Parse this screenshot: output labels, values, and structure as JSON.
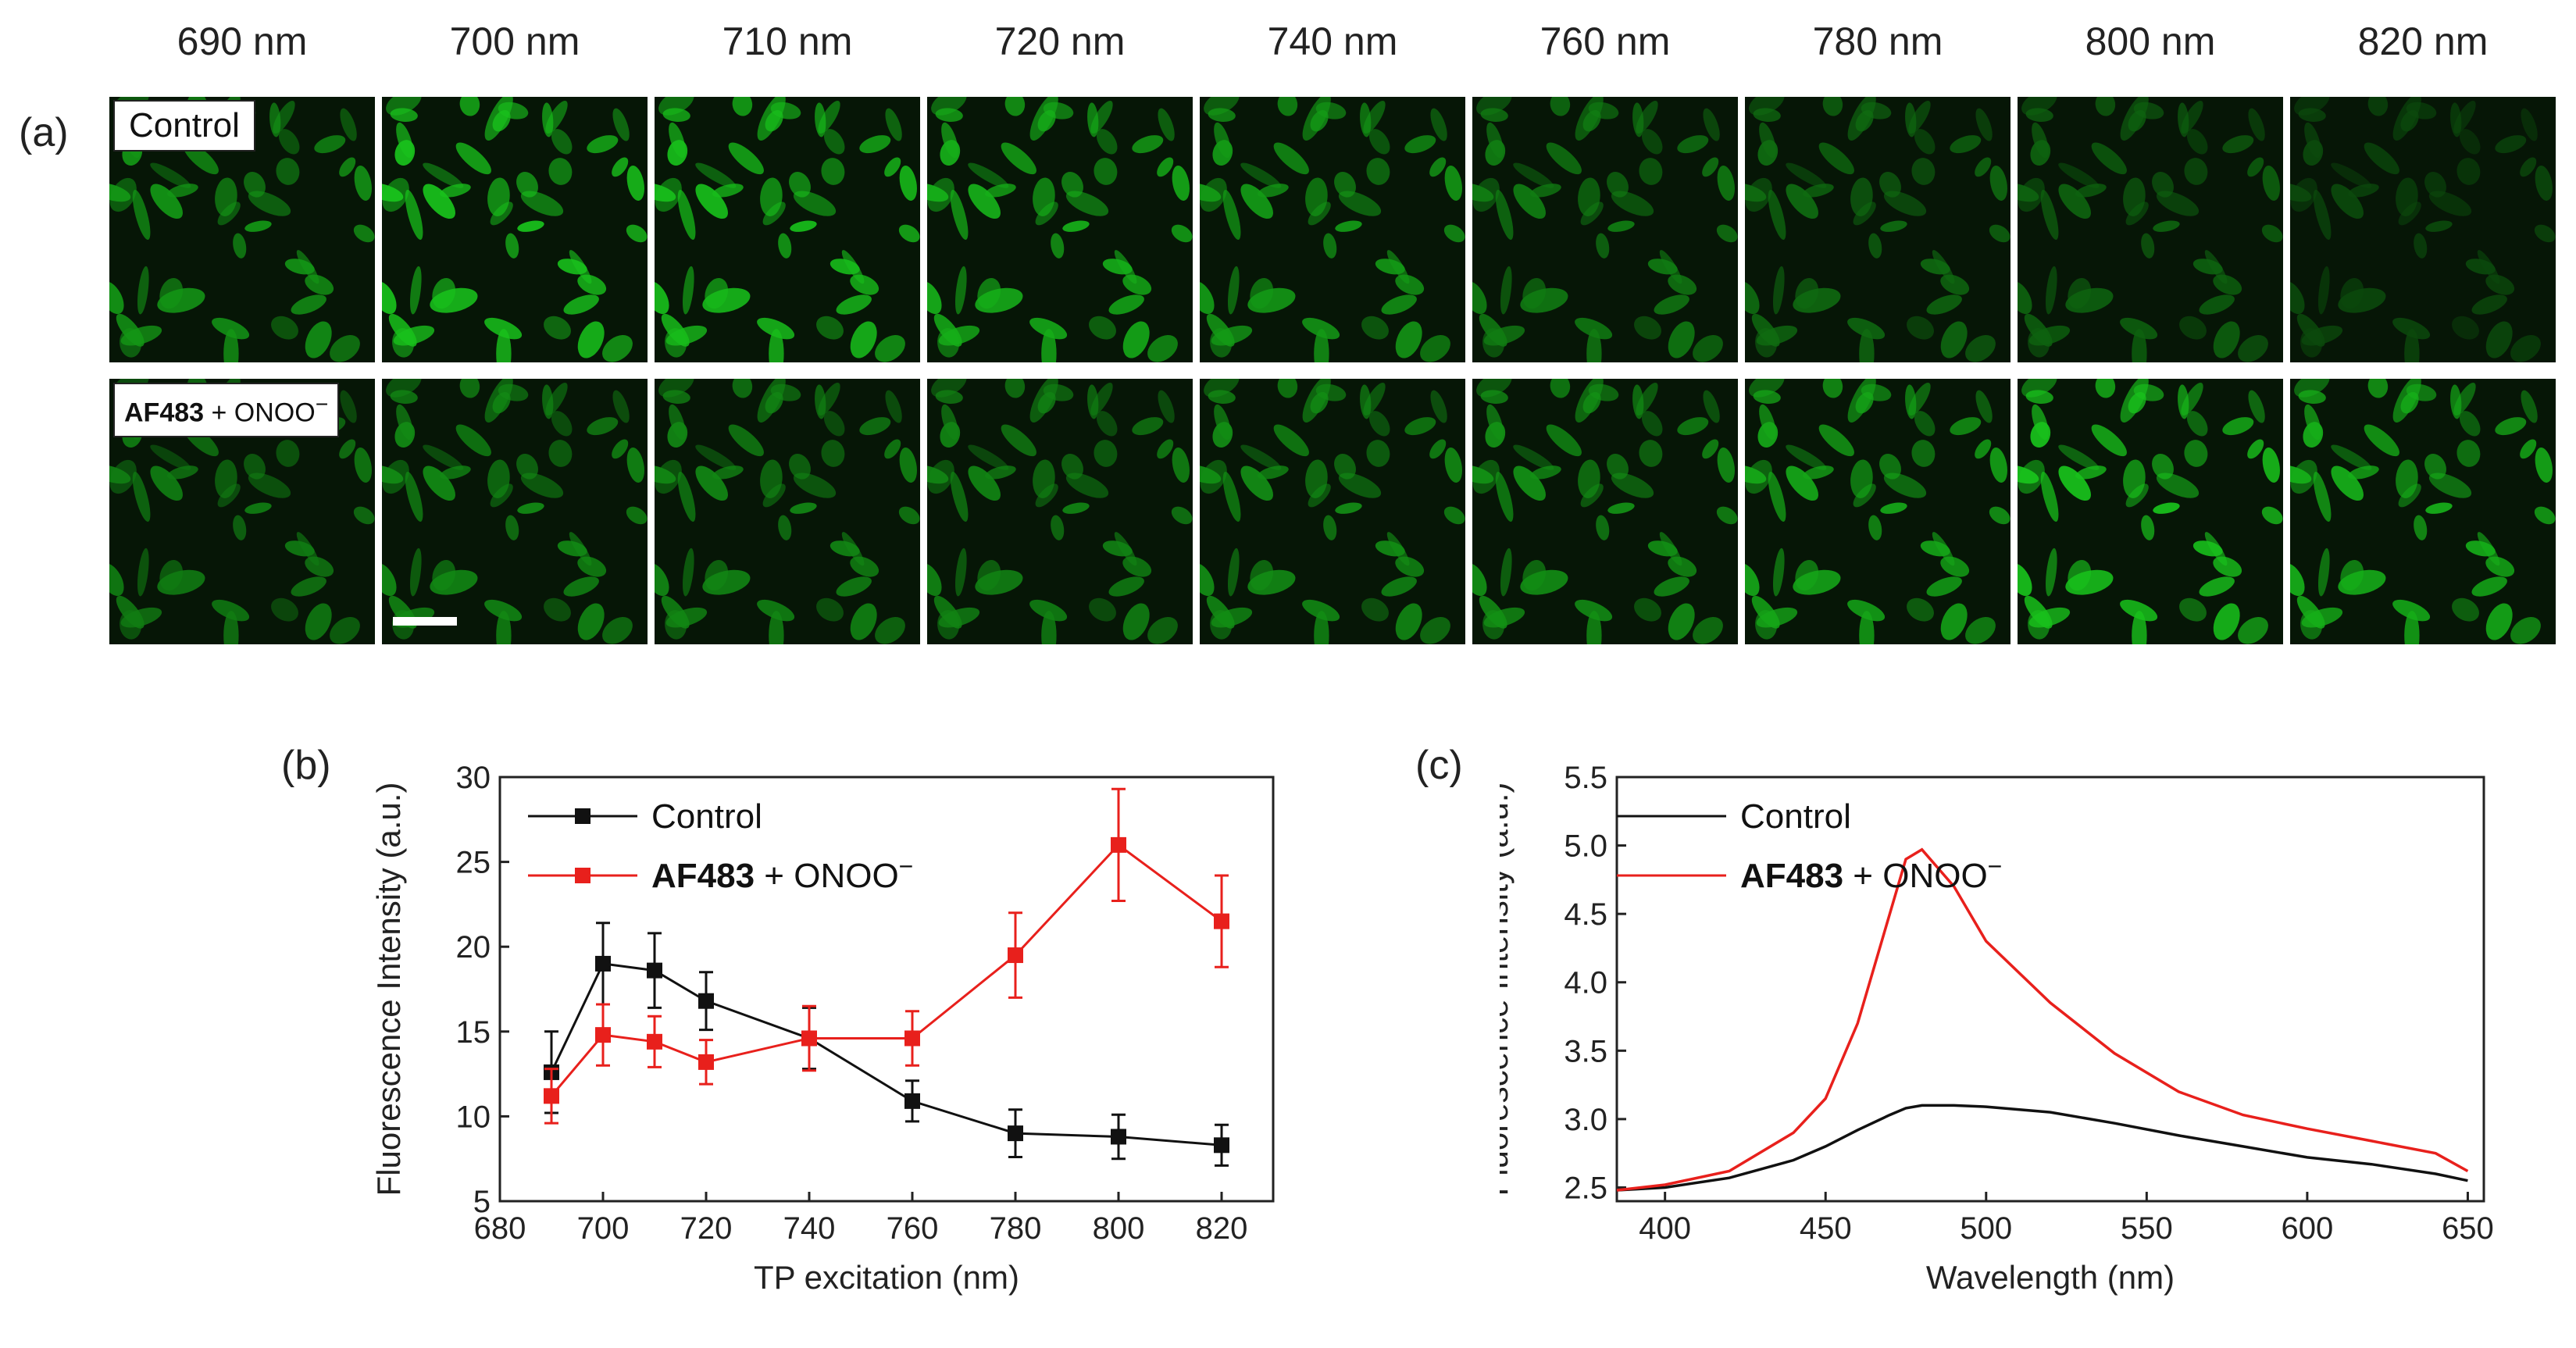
{
  "panels": {
    "a": "(a)",
    "b": "(b)",
    "c": "(c)"
  },
  "panel_a": {
    "wavelength_labels": [
      "690 nm",
      "700 nm",
      "710 nm",
      "720 nm",
      "740 nm",
      "760 nm",
      "780 nm",
      "800 nm",
      "820 nm"
    ],
    "row_labels": {
      "control": "Control",
      "treated_probe": "AF483",
      "treated_rest": " + ONOO",
      "treated_sup": "−"
    },
    "tile_color": "#19c21c",
    "control_brightness": [
      0.75,
      1.0,
      0.98,
      0.9,
      0.78,
      0.6,
      0.5,
      0.45,
      0.3
    ],
    "treated_brightness": [
      0.6,
      0.68,
      0.66,
      0.64,
      0.7,
      0.72,
      0.85,
      1.0,
      0.9
    ]
  },
  "chart_data": [
    {
      "type": "line",
      "panel": "b",
      "title": "",
      "xlabel": "TP excitation (nm)",
      "ylabel": "Fluorescence Intensity (a.u.)",
      "xlim": [
        680,
        830
      ],
      "ylim": [
        5,
        30
      ],
      "xticks": [
        680,
        700,
        720,
        740,
        760,
        780,
        800,
        820
      ],
      "yticks": [
        5,
        10,
        15,
        20,
        25,
        30
      ],
      "x": [
        690,
        700,
        710,
        720,
        740,
        760,
        780,
        800,
        820
      ],
      "legend_position": "top-left",
      "series": [
        {
          "name": "Control",
          "color": "#111111",
          "values": [
            12.6,
            19.0,
            18.6,
            16.8,
            14.6,
            10.9,
            9.0,
            8.8,
            8.3
          ],
          "errors": [
            2.4,
            2.4,
            2.2,
            1.7,
            1.8,
            1.2,
            1.4,
            1.3,
            1.2
          ]
        },
        {
          "name": "AF483 + ONOO−",
          "name_probe": "AF483",
          "name_rest": " + ONOO",
          "name_sup": "−",
          "color": "#e8201c",
          "values": [
            11.2,
            14.8,
            14.4,
            13.2,
            14.6,
            14.6,
            19.5,
            26.0,
            21.5
          ],
          "errors": [
            1.6,
            1.8,
            1.5,
            1.3,
            1.9,
            1.6,
            2.5,
            3.3,
            2.7
          ]
        }
      ]
    },
    {
      "type": "line",
      "panel": "c",
      "title": "",
      "xlabel": "Wavelength (nm)",
      "ylabel": "Fluorescence Intensity (a.u.)",
      "xlim": [
        385,
        655
      ],
      "ylim": [
        2.4,
        5.5
      ],
      "xticks": [
        400,
        450,
        500,
        550,
        600,
        650
      ],
      "yticks": [
        2.5,
        3.0,
        3.5,
        4.0,
        4.5,
        5.0,
        5.5
      ],
      "x": [
        385,
        400,
        420,
        440,
        450,
        460,
        470,
        475,
        480,
        490,
        500,
        520,
        540,
        560,
        580,
        600,
        620,
        640,
        650
      ],
      "legend_position": "top-left",
      "series": [
        {
          "name": "Control",
          "color": "#111111",
          "values": [
            2.48,
            2.5,
            2.57,
            2.7,
            2.8,
            2.92,
            3.03,
            3.08,
            3.1,
            3.1,
            3.09,
            3.05,
            2.97,
            2.88,
            2.8,
            2.72,
            2.67,
            2.6,
            2.55
          ]
        },
        {
          "name": "AF483 + ONOO−",
          "name_probe": "AF483",
          "name_rest": " + ONOO",
          "name_sup": "−",
          "color": "#e8201c",
          "values": [
            2.48,
            2.52,
            2.62,
            2.9,
            3.15,
            3.7,
            4.5,
            4.9,
            4.97,
            4.7,
            4.3,
            3.85,
            3.48,
            3.2,
            3.03,
            2.93,
            2.84,
            2.75,
            2.62
          ]
        }
      ]
    }
  ]
}
